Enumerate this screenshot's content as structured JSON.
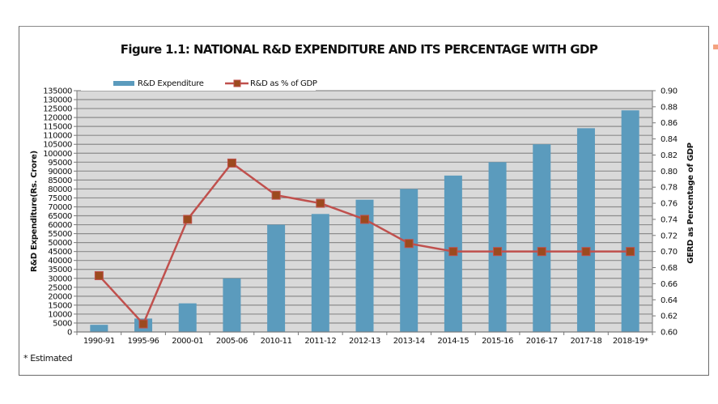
{
  "chart_data": {
    "type": "bar+line",
    "title": "Figure 1.1:  NATIONAL R&D EXPENDITURE AND ITS PERCENTAGE WITH GDP",
    "categories": [
      "1990-91",
      "1995-96",
      "2000-01",
      "2005-06",
      "2010-11",
      "2011-12",
      "2012-13",
      "2013-14",
      "2014-15",
      "2015-16",
      "2016-17",
      "2017-18",
      "2018-19*"
    ],
    "series": [
      {
        "name": "R&D Expenditure",
        "type": "bar",
        "axis": "left",
        "color": "#5b9bbd",
        "values": [
          4000,
          7500,
          16000,
          30000,
          60000,
          66000,
          74000,
          80000,
          87500,
          95000,
          105000,
          114000,
          124000
        ]
      },
      {
        "name": "R&D as % of GDP",
        "type": "line",
        "axis": "right",
        "color": "#c0504d",
        "marker_color": "#9c4a1e",
        "values": [
          0.67,
          0.61,
          0.74,
          0.81,
          0.77,
          0.76,
          0.74,
          0.71,
          0.7,
          0.7,
          0.7,
          0.7,
          0.7
        ]
      }
    ],
    "ylabel": "R&D Expenditure(Rs. Crore)",
    "ylabel_right": "GERD as Percentage of GDP",
    "xlabel": "",
    "ylim": [
      0,
      135000
    ],
    "ylim_right": [
      0.6,
      0.9
    ],
    "yticks": [
      "0",
      "5000",
      "10000",
      "15000",
      "20000",
      "25000",
      "30000",
      "35000",
      "40000",
      "45000",
      "50000",
      "55000",
      "60000",
      "65000",
      "70000",
      "75000",
      "80000",
      "85000",
      "90000",
      "95000",
      "100000",
      "105000",
      "110000",
      "115000",
      "120000",
      "125000",
      "130000",
      "135000"
    ],
    "yticks_right": [
      "0.60",
      "0.62",
      "0.64",
      "0.66",
      "0.68",
      "0.70",
      "0.72",
      "0.74",
      "0.76",
      "0.78",
      "0.80",
      "0.82",
      "0.84",
      "0.86",
      "0.88",
      "0.90"
    ],
    "grid": true,
    "legend": [
      "R&D Expenditure",
      "R&D as % of GDP"
    ],
    "legend_position": "top-left",
    "footnote": "* Estimated"
  },
  "colors": {
    "plot_background": "#d9d9d9",
    "gridline": "#8c8c8c",
    "bar": "#5b9bbd",
    "line": "#c0504d",
    "marker_fill": "#9c4a1e"
  }
}
